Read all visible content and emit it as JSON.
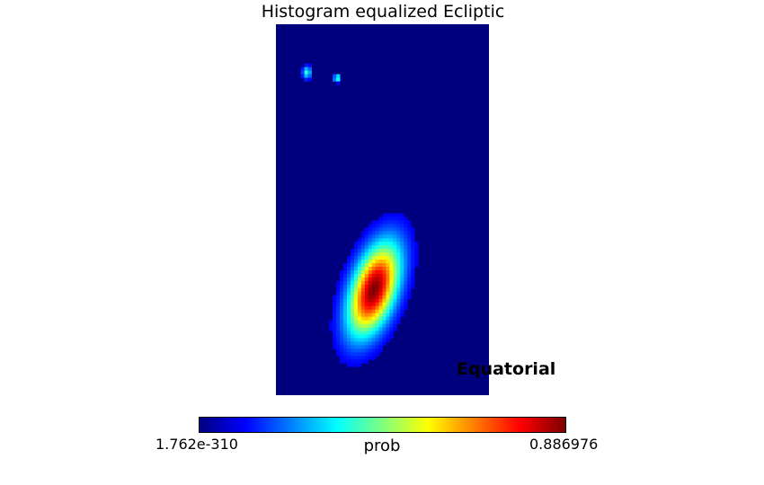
{
  "chart_data": {
    "type": "heatmap",
    "title": "Histogram equalized Ecliptic",
    "coordinate_label": "Equatorial",
    "colormap": "jet",
    "colorbar": {
      "label": "prob",
      "min_label": "1.762e-310",
      "max_label": "0.886976"
    },
    "background_color": "#00007f",
    "hotspots": [
      {
        "name": "main-peak",
        "u": 0.46,
        "v": 0.715,
        "sigma_u": 0.055,
        "sigma_v": 0.07,
        "peak": 1.0
      },
      {
        "name": "small-feature",
        "u": 0.145,
        "v": 0.13,
        "sigma_u": 0.012,
        "sigma_v": 0.01,
        "peak": 0.28
      },
      {
        "name": "pixel-feature",
        "u": 0.285,
        "v": 0.145,
        "sigma_u": 0.006,
        "sigma_v": 0.006,
        "peak": 0.55
      }
    ]
  }
}
